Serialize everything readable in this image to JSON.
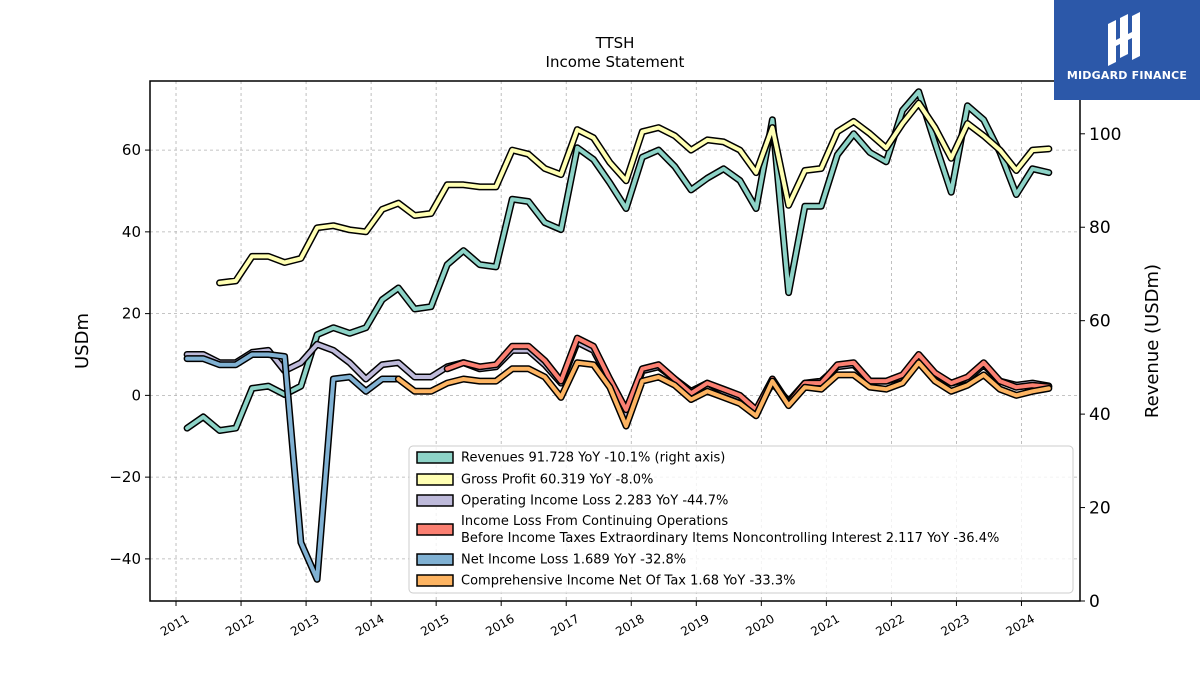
{
  "header": {
    "title": "TTSH",
    "subtitle": "Income Statement"
  },
  "brand": {
    "name": "MIDGARD FINANCE",
    "color": "#2c58a9"
  },
  "chart_data": {
    "type": "line",
    "title": "TTSH",
    "subtitle": "Income Statement",
    "xlabel": "",
    "ylabel": "USDm",
    "ylabel_right": "Revenue (USDm)",
    "xlim": [
      2010.6,
      2024.9
    ],
    "ylim": [
      -50.3,
      76.9
    ],
    "ylim_right": [
      0,
      111.3
    ],
    "yticks": [
      -40,
      -20,
      0,
      20,
      40,
      60
    ],
    "yticks_right": [
      0,
      20,
      40,
      60,
      80,
      100
    ],
    "xticks": [
      2011,
      2012,
      2013,
      2014,
      2015,
      2016,
      2017,
      2018,
      2019,
      2020,
      2021,
      2022,
      2023,
      2024
    ],
    "grid": true,
    "legend_position": "lower-right",
    "series": [
      {
        "name": "Revenues",
        "legend": "Revenues  91.728 YoY -10.1% (right axis)",
        "axis": "right",
        "color": "#8dd3c7",
        "x": [
          2011.17,
          2011.42,
          2011.67,
          2011.92,
          2012.17,
          2012.42,
          2012.67,
          2012.92,
          2013.17,
          2013.42,
          2013.67,
          2013.92,
          2014.17,
          2014.42,
          2014.67,
          2014.92,
          2015.17,
          2015.42,
          2015.67,
          2015.92,
          2016.17,
          2016.42,
          2016.67,
          2016.92,
          2017.17,
          2017.42,
          2017.67,
          2017.92,
          2018.17,
          2018.42,
          2018.67,
          2018.92,
          2019.17,
          2019.42,
          2019.67,
          2019.92,
          2020.17,
          2020.42,
          2020.67,
          2020.92,
          2021.17,
          2021.42,
          2021.67,
          2021.92,
          2022.17,
          2022.42,
          2022.67,
          2022.92,
          2023.17,
          2023.42,
          2023.67,
          2023.92,
          2024.17,
          2024.42
        ],
        "values": [
          37.0,
          39.4,
          36.5,
          37.0,
          45.5,
          46.0,
          44.2,
          46.0,
          57.0,
          58.5,
          57.3,
          58.5,
          64.5,
          67.0,
          62.5,
          63.0,
          72.0,
          75.0,
          72.0,
          71.5,
          86.0,
          85.5,
          81.0,
          79.5,
          97.0,
          94.5,
          89.5,
          84.0,
          95.0,
          96.5,
          93.0,
          88.0,
          90.5,
          92.5,
          90.0,
          84.0,
          103.0,
          66.0,
          84.5,
          84.5,
          95.5,
          100.0,
          96.0,
          94.0,
          105.0,
          109.0,
          98.0,
          87.5,
          106.0,
          103.0,
          96.0,
          87.0,
          92.5,
          91.7
        ]
      },
      {
        "name": "Gross Profit",
        "legend": "Gross Profit  60.319 YoY -8.0%",
        "axis": "left",
        "color": "#ffffb3",
        "x": [
          2011.67,
          2011.92,
          2012.17,
          2012.42,
          2012.67,
          2012.92,
          2013.17,
          2013.42,
          2013.67,
          2013.92,
          2014.17,
          2014.42,
          2014.67,
          2014.92,
          2015.17,
          2015.42,
          2015.67,
          2015.92,
          2016.17,
          2016.42,
          2016.67,
          2016.92,
          2017.17,
          2017.42,
          2017.67,
          2017.92,
          2018.17,
          2018.42,
          2018.67,
          2018.92,
          2019.17,
          2019.42,
          2019.67,
          2019.92,
          2020.17,
          2020.42,
          2020.67,
          2020.92,
          2021.17,
          2021.42,
          2021.67,
          2021.92,
          2022.17,
          2022.42,
          2022.67,
          2022.92,
          2023.17,
          2023.42,
          2023.67,
          2023.92,
          2024.17,
          2024.42
        ],
        "values": [
          27.5,
          28.0,
          34.0,
          34.0,
          32.5,
          33.5,
          41.0,
          41.5,
          40.5,
          40.0,
          45.5,
          47.0,
          44.0,
          44.5,
          51.5,
          51.5,
          51.0,
          51.0,
          60.0,
          59.0,
          55.5,
          54.0,
          65.0,
          63.0,
          57.0,
          52.5,
          64.5,
          65.5,
          63.5,
          60.0,
          62.5,
          62.0,
          60.0,
          54.5,
          65.5,
          46.5,
          55.0,
          55.5,
          64.5,
          67.0,
          64.0,
          60.5,
          66.5,
          71.5,
          65.5,
          58.0,
          66.5,
          63.5,
          60.0,
          55.0,
          60.0,
          60.3
        ]
      },
      {
        "name": "Operating Income Loss",
        "legend": "Operating Income Loss  2.283 YoY -44.7%",
        "axis": "left",
        "color": "#bebada",
        "x": [
          2011.17,
          2011.42,
          2011.67,
          2011.92,
          2012.17,
          2012.42,
          2012.67,
          2012.92,
          2013.17,
          2013.42,
          2013.67,
          2013.92,
          2014.17,
          2014.42,
          2014.67,
          2014.92,
          2015.17,
          2015.42,
          2015.67,
          2015.92,
          2016.17,
          2016.42,
          2016.67,
          2016.92,
          2017.17,
          2017.42,
          2017.67,
          2017.92,
          2018.17,
          2018.42,
          2018.67,
          2018.92,
          2019.17,
          2019.42,
          2019.67,
          2019.92,
          2020.17,
          2020.42,
          2020.67,
          2020.92,
          2021.17,
          2021.42,
          2021.67,
          2021.92,
          2022.17,
          2022.42,
          2022.67,
          2022.92,
          2023.17,
          2023.42,
          2023.67,
          2023.92,
          2024.17,
          2024.42
        ],
        "values": [
          10.0,
          10.0,
          8.0,
          8.0,
          10.5,
          11.0,
          6.0,
          8.0,
          12.5,
          11.0,
          8.0,
          4.0,
          7.5,
          8.0,
          4.5,
          4.5,
          7.0,
          8.0,
          6.5,
          7.0,
          11.0,
          11.0,
          7.5,
          3.0,
          13.0,
          11.0,
          3.5,
          -5.0,
          6.0,
          7.0,
          4.0,
          1.0,
          3.0,
          1.0,
          -0.5,
          -4.0,
          3.0,
          -1.5,
          3.0,
          3.5,
          7.0,
          7.5,
          3.5,
          3.5,
          4.5,
          9.0,
          5.0,
          3.0,
          4.0,
          7.5,
          3.5,
          2.5,
          3.0,
          2.3
        ]
      },
      {
        "name": "Income Loss From Continuing Operations Before Income Taxes Extraordinary Items Noncontrolling Interest",
        "legend_lines": [
          "Income Loss From Continuing Operations",
          "Before Income Taxes Extraordinary Items Noncontrolling Interest  2.117 YoY -36.4%"
        ],
        "axis": "left",
        "color": "#fb8072",
        "x": [
          2015.17,
          2015.42,
          2015.67,
          2015.92,
          2016.17,
          2016.42,
          2016.67,
          2016.92,
          2017.17,
          2017.42,
          2017.67,
          2017.92,
          2018.17,
          2018.42,
          2018.67,
          2018.92,
          2019.17,
          2019.42,
          2019.67,
          2019.92,
          2020.17,
          2020.42,
          2020.67,
          2020.92,
          2021.17,
          2021.42,
          2021.67,
          2021.92,
          2022.17,
          2022.42,
          2022.67,
          2022.92,
          2023.17,
          2023.42,
          2023.67,
          2023.92,
          2024.17,
          2024.42
        ],
        "values": [
          6.5,
          8.0,
          7.0,
          7.5,
          12.0,
          12.0,
          8.5,
          3.5,
          14.0,
          12.0,
          4.0,
          -3.5,
          6.5,
          7.5,
          4.0,
          0.5,
          3.0,
          1.5,
          0.0,
          -3.5,
          4.0,
          -2.0,
          3.0,
          3.0,
          7.5,
          8.0,
          3.5,
          3.5,
          5.0,
          10.0,
          5.5,
          3.0,
          4.5,
          8.0,
          3.5,
          2.0,
          2.5,
          2.1
        ]
      },
      {
        "name": "Net Income Loss",
        "legend": "Net Income Loss  1.689 YoY -32.8%",
        "axis": "left",
        "color": "#80b1d3",
        "x": [
          2011.17,
          2011.42,
          2011.67,
          2011.92,
          2012.17,
          2012.42,
          2012.67,
          2012.92,
          2013.17,
          2013.42,
          2013.67,
          2013.92,
          2014.17,
          2014.42
        ],
        "values": [
          9.0,
          9.0,
          7.5,
          7.5,
          10.0,
          10.0,
          9.5,
          -36.0,
          -45.0,
          4.0,
          4.5,
          1.0,
          4.0,
          4.0
        ]
      },
      {
        "name": "Comprehensive Income Net Of Tax",
        "legend": "Comprehensive Income Net Of Tax  1.68 YoY -33.3%",
        "axis": "left",
        "color": "#fdb462",
        "x": [
          2014.42,
          2014.67,
          2014.92,
          2015.17,
          2015.42,
          2015.67,
          2015.92,
          2016.17,
          2016.42,
          2016.67,
          2016.92,
          2017.17,
          2017.42,
          2017.67,
          2017.92,
          2018.17,
          2018.42,
          2018.67,
          2018.92,
          2019.17,
          2019.42,
          2019.67,
          2019.92,
          2020.17,
          2020.42,
          2020.67,
          2020.92,
          2021.17,
          2021.42,
          2021.67,
          2021.92,
          2022.17,
          2022.42,
          2022.67,
          2022.92,
          2023.17,
          2023.42,
          2023.67,
          2023.92,
          2024.17,
          2024.42
        ],
        "values": [
          4.0,
          1.0,
          1.0,
          3.0,
          4.0,
          3.5,
          3.5,
          6.5,
          6.5,
          4.5,
          -0.5,
          8.0,
          7.5,
          2.0,
          -7.5,
          3.5,
          4.5,
          2.5,
          -1.0,
          1.0,
          -0.5,
          -2.0,
          -5.0,
          3.5,
          -2.5,
          2.0,
          1.5,
          5.0,
          5.0,
          2.0,
          1.5,
          3.0,
          8.0,
          3.5,
          1.0,
          2.5,
          5.0,
          1.5,
          0.0,
          1.0,
          1.7
        ]
      }
    ]
  }
}
